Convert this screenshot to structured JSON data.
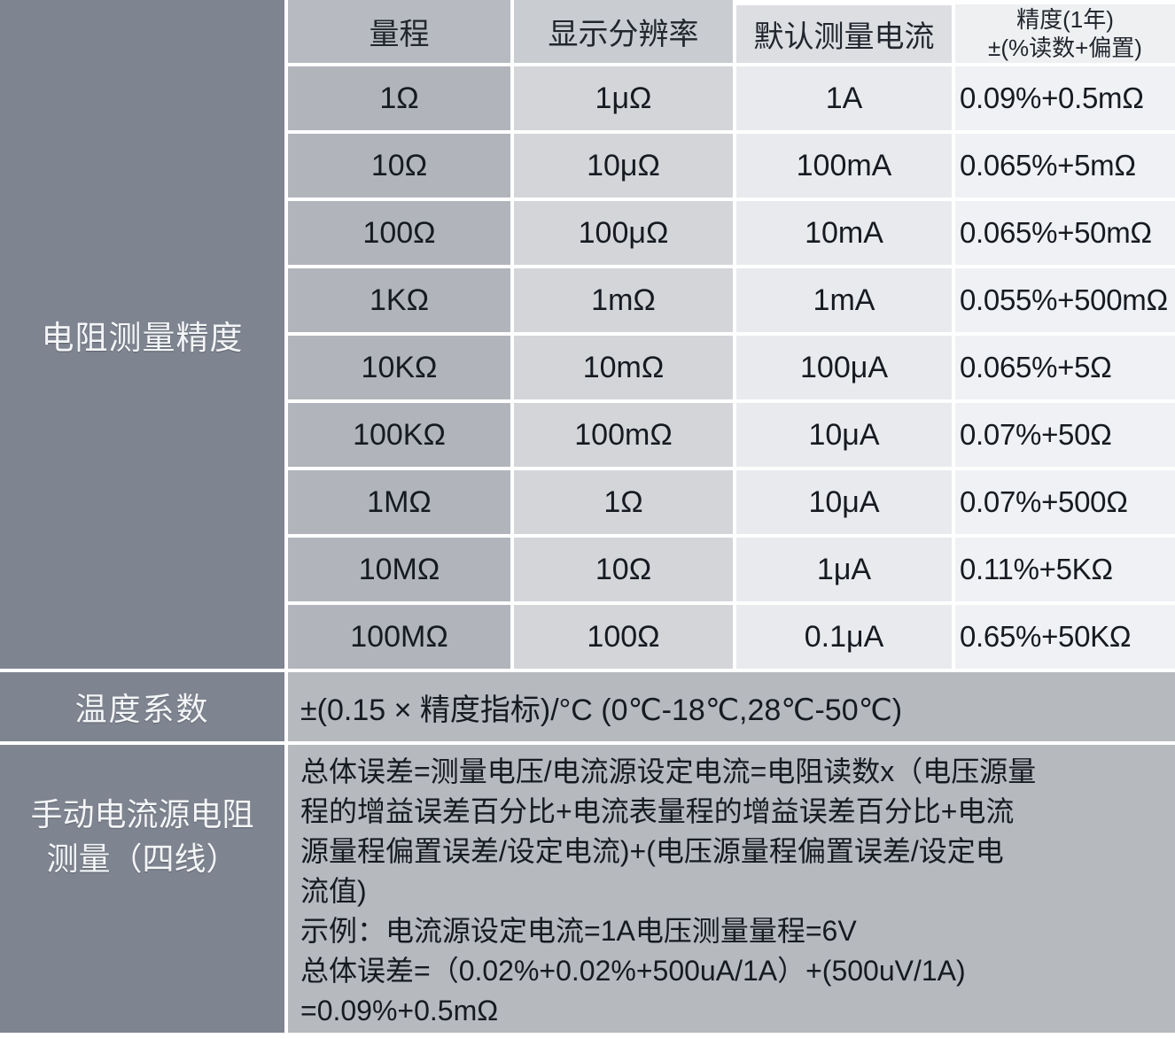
{
  "resistance_table": {
    "section_label": "电阻测量精度",
    "col_headers": {
      "range": "量程",
      "resolution": "显示分辨率",
      "current": "默认测量电流",
      "accuracy_line1": "精度(1年)",
      "accuracy_line2": "±(%读数+偏置)"
    },
    "rows": [
      {
        "range": "1Ω",
        "resolution": "1μΩ",
        "current": "1A",
        "accuracy": "0.09%+0.5mΩ"
      },
      {
        "range": "10Ω",
        "resolution": "10μΩ",
        "current": "100mA",
        "accuracy": "0.065%+5mΩ"
      },
      {
        "range": "100Ω",
        "resolution": "100μΩ",
        "current": "10mA",
        "accuracy": "0.065%+50mΩ"
      },
      {
        "range": "1KΩ",
        "resolution": "1mΩ",
        "current": "1mA",
        "accuracy": "0.055%+500mΩ"
      },
      {
        "range": "10KΩ",
        "resolution": "10mΩ",
        "current": "100μA",
        "accuracy": "0.065%+5Ω"
      },
      {
        "range": "100KΩ",
        "resolution": "100mΩ",
        "current": "10μA",
        "accuracy": "0.07%+50Ω"
      },
      {
        "range": "1MΩ",
        "resolution": "1Ω",
        "current": "10μA",
        "accuracy": "0.07%+500Ω"
      },
      {
        "range": "10MΩ",
        "resolution": "10Ω",
        "current": "1μA",
        "accuracy": "0.11%+5KΩ"
      },
      {
        "range": "100MΩ",
        "resolution": "100Ω",
        "current": "0.1μA",
        "accuracy": "0.65%+50KΩ"
      }
    ]
  },
  "temperature_coefficient": {
    "label": "温度系数",
    "value": "±(0.15 × 精度指标)/°C (0℃-18℃,28℃-50℃)"
  },
  "manual_source_measurement": {
    "label": "手动电流源电阻\n测量（四线）",
    "body": "总体误差=测量电压/电流源设定电流=电阻读数x（电压源量\n程的增益误差百分比+电流表量程的增益误差百分比+电流\n源量程偏置误差/设定电流)+(电压源量程偏置误差/设定电\n流值)\n示例：电流源设定电流=1A电压测量量程=6V\n总体误差=（0.02%+0.02%+500uA/1A）+(500uV/1A)\n=0.09%+0.5mΩ"
  },
  "colors": {
    "label_bg": "#7e8490",
    "col_range_bg": "#b1b5bb",
    "col_resolution_bg": "#d3d5d9",
    "col_current_bg": "#e9eaed",
    "col_accuracy_bg": "#f0f1f4",
    "content_bg": "#b6b9be",
    "text_dark": "#161a21",
    "text_light": "#f3f5f7"
  }
}
